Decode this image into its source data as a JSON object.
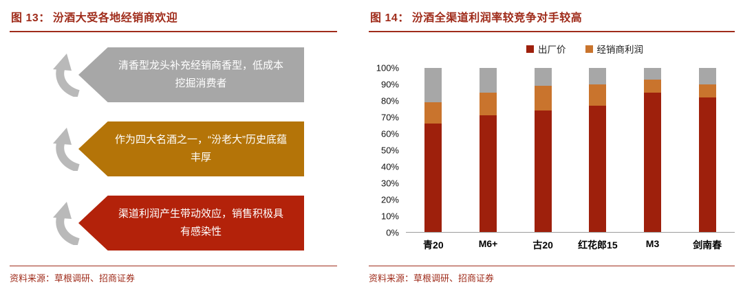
{
  "accent_color": "#9f2b1a",
  "left_panel": {
    "title_prefix": "图 13：",
    "title": "汾酒大受各地经销商欢迎",
    "banners": [
      {
        "text": "清香型龙头补充经销商香型，低成本挖掘消费者",
        "color": "#a7a7a7"
      },
      {
        "text": "作为四大名酒之一，“汾老大”历史底蕴丰厚",
        "color": "#b47408"
      },
      {
        "text": "渠道利润产生带动效应，销售积极具有感染性",
        "color": "#b3220a"
      }
    ],
    "source": "资料来源：草根调研、招商证券"
  },
  "right_panel": {
    "title_prefix": "图 14：",
    "title": "汾酒全渠道利润率较竞争对手较高",
    "legend": [
      {
        "label": "出厂价",
        "color": "#9e200c"
      },
      {
        "label": "经销商利润",
        "color": "#c9742d"
      }
    ],
    "source": "资料来源：草根调研、招商证券"
  },
  "chart_data": {
    "type": "bar",
    "subtype": "stacked-100pct",
    "title": "汾酒全渠道利润率较竞争对手较高",
    "categories": [
      "青20",
      "M6+",
      "古20",
      "红花郎15",
      "M3",
      "剑南春"
    ],
    "series": [
      {
        "name": "出厂价",
        "color": "#9e200c",
        "values": [
          66,
          71,
          74,
          77,
          85,
          82
        ],
        "in_legend": true
      },
      {
        "name": "经销商利润",
        "color": "#c9742d",
        "values": [
          13,
          14,
          15,
          13,
          8,
          8
        ],
        "in_legend": true
      },
      {
        "name": "",
        "color": "#a7a7a7",
        "values": [
          21,
          15,
          11,
          10,
          7,
          10
        ],
        "in_legend": false
      }
    ],
    "ylim": [
      0,
      100
    ],
    "yticks": [
      "100%",
      "90%",
      "80%",
      "70%",
      "60%",
      "50%",
      "40%",
      "30%",
      "20%",
      "10%",
      "0%"
    ],
    "grid": false,
    "legend_position": "top"
  }
}
